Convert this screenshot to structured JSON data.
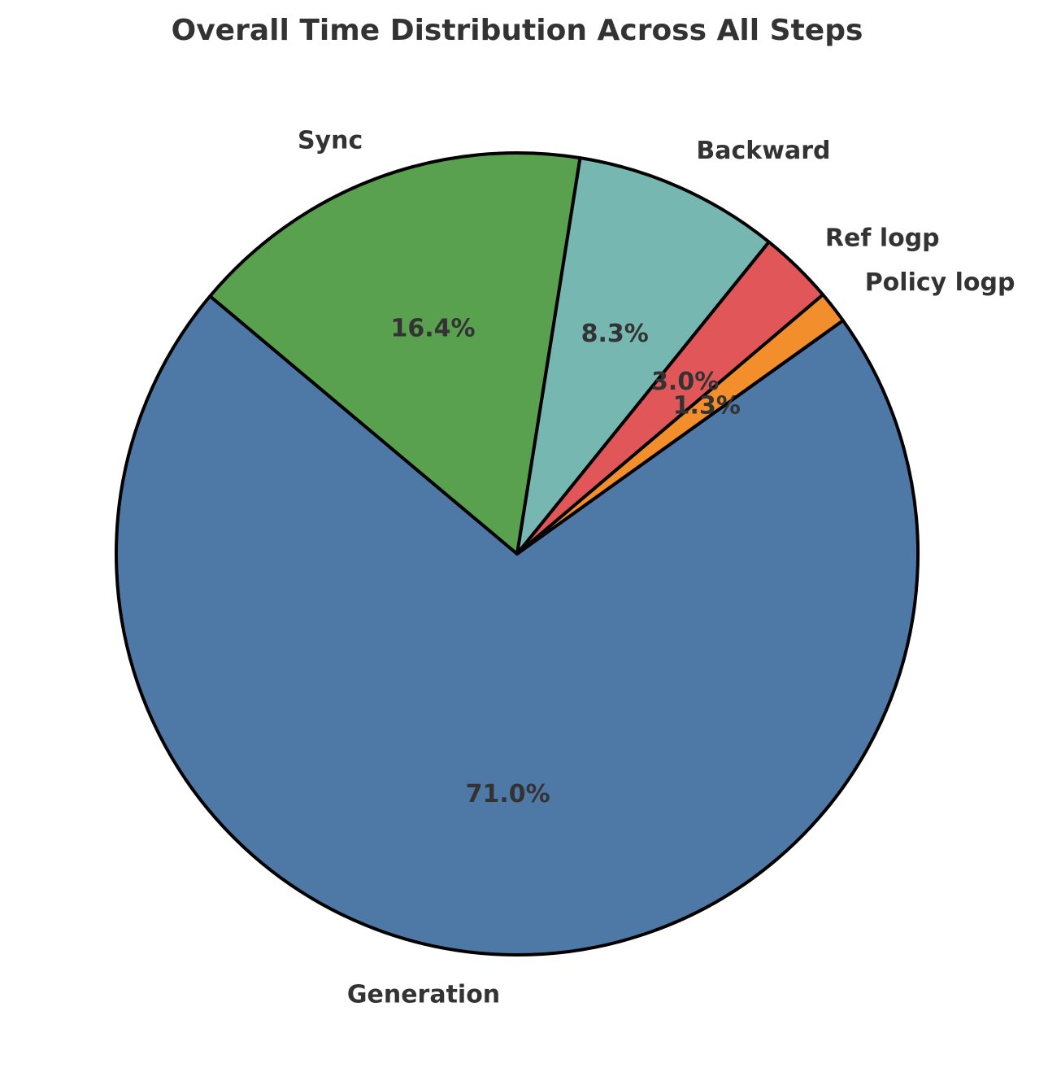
{
  "chart_data": {
    "type": "pie",
    "title": "Overall Time Distribution Across All Steps",
    "start_angle_deg": 140,
    "direction": "counterclockwise",
    "slices": [
      {
        "label": "Generation",
        "value": 71.0,
        "pct_text": "71.0%",
        "color": "#4e79a7"
      },
      {
        "label": "Policy logp",
        "value": 1.3,
        "pct_text": "1.3%",
        "color": "#f28e2b"
      },
      {
        "label": "Ref logp",
        "value": 3.0,
        "pct_text": "3.0%",
        "color": "#e15759"
      },
      {
        "label": "Backward",
        "value": 8.3,
        "pct_text": "8.3%",
        "color": "#76b7b2"
      },
      {
        "label": "Sync",
        "value": 16.4,
        "pct_text": "16.4%",
        "color": "#59a14f"
      }
    ]
  }
}
